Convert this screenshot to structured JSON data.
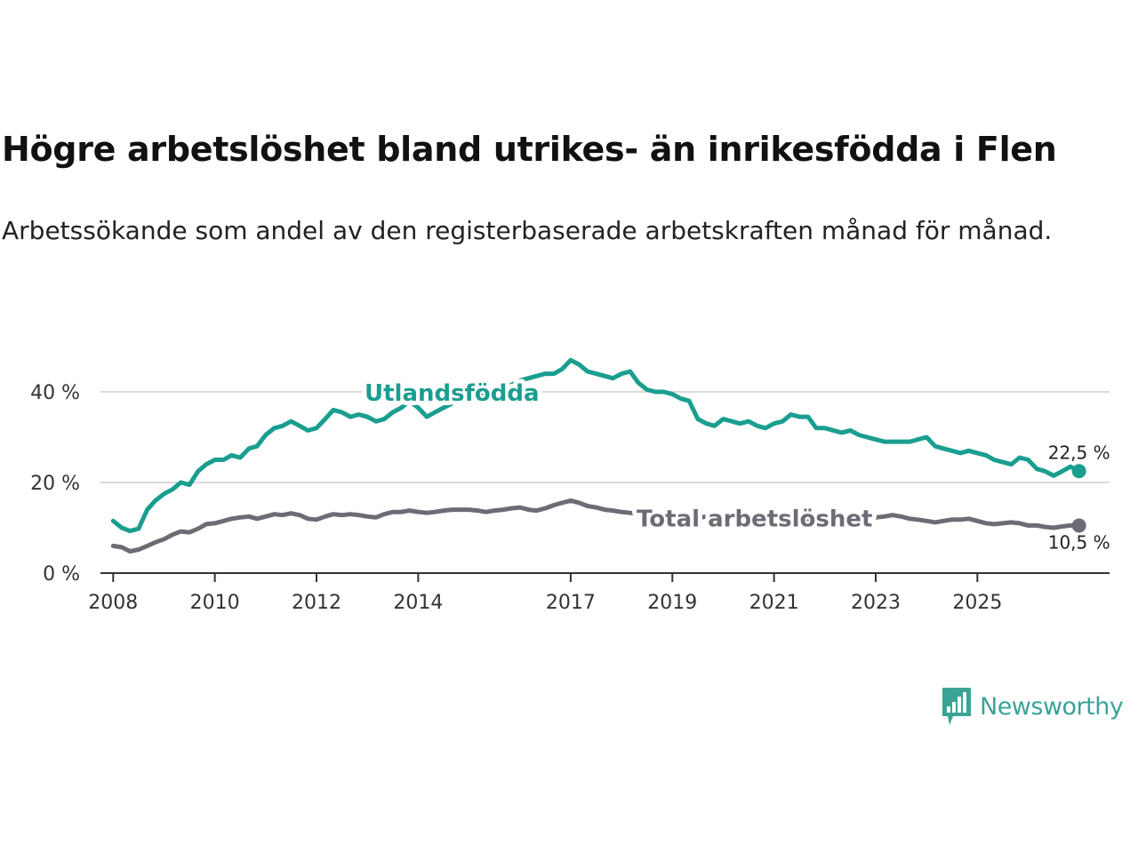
{
  "header": {
    "title": "Högre arbetslöshet bland utrikes- än inrikesfödda i Flen",
    "subtitle": "Arbetssökande som andel av den registerbaserade arbetskraften månad för månad."
  },
  "brand": {
    "name": "Newsworthy",
    "icon": "newsworthy-logo-icon",
    "color": "#3aa396"
  },
  "chart_data": {
    "type": "line",
    "title": "Högre arbetslöshet bland utrikes- än inrikesfödda i Flen",
    "subtitle": "Arbetssökande som andel av den registerbaserade arbetskraften månad för månad.",
    "xlabel": "",
    "ylabel": "",
    "xlim": [
      2007.75,
      2027.6
    ],
    "ylim": [
      0,
      42
    ],
    "grid": true,
    "x_ticks": [
      2008,
      2010,
      2012,
      2014,
      2017,
      2019,
      2021,
      2023,
      2025
    ],
    "x_tick_labels": [
      "2008",
      "2010",
      "2012",
      "2014",
      "2017",
      "2019",
      "2021",
      "2023",
      "2025"
    ],
    "y_ticks": [
      0,
      20,
      40
    ],
    "y_tick_labels": [
      "0 %",
      "20 %",
      "40 %"
    ],
    "series": [
      {
        "name": "Utlandsfödda",
        "color": "#1a9e8f",
        "end_label": "22,5 %",
        "points": [
          [
            2008.0,
            11.5
          ],
          [
            2008.17,
            10.0
          ],
          [
            2008.33,
            9.3
          ],
          [
            2008.5,
            9.8
          ],
          [
            2008.67,
            14.0
          ],
          [
            2008.83,
            16.0
          ],
          [
            2009.0,
            17.5
          ],
          [
            2009.17,
            18.5
          ],
          [
            2009.33,
            20.0
          ],
          [
            2009.5,
            19.5
          ],
          [
            2009.67,
            22.5
          ],
          [
            2009.83,
            24.0
          ],
          [
            2010.0,
            25.0
          ],
          [
            2010.17,
            25.0
          ],
          [
            2010.33,
            26.0
          ],
          [
            2010.5,
            25.5
          ],
          [
            2010.67,
            27.5
          ],
          [
            2010.83,
            28.0
          ],
          [
            2011.0,
            30.5
          ],
          [
            2011.17,
            32.0
          ],
          [
            2011.33,
            32.5
          ],
          [
            2011.5,
            33.5
          ],
          [
            2011.67,
            32.5
          ],
          [
            2011.83,
            31.5
          ],
          [
            2012.0,
            32.0
          ],
          [
            2012.17,
            34.0
          ],
          [
            2012.33,
            36.0
          ],
          [
            2012.5,
            35.5
          ],
          [
            2012.67,
            34.5
          ],
          [
            2012.83,
            35.0
          ],
          [
            2013.0,
            34.5
          ],
          [
            2013.17,
            33.5
          ],
          [
            2013.33,
            34.0
          ],
          [
            2013.5,
            35.5
          ],
          [
            2013.67,
            36.5
          ],
          [
            2013.83,
            38.0
          ],
          [
            2014.0,
            36.5
          ],
          [
            2014.17,
            34.5
          ],
          [
            2014.33,
            35.5
          ],
          [
            2014.5,
            36.5
          ],
          [
            2014.67,
            37.5
          ],
          [
            2014.83,
            38.0
          ],
          [
            2015.0,
            38.5
          ],
          [
            2015.17,
            39.5
          ],
          [
            2015.33,
            40.0
          ],
          [
            2015.5,
            40.5
          ],
          [
            2015.67,
            41.0
          ],
          [
            2015.83,
            41.5
          ],
          [
            2016.0,
            42.5
          ],
          [
            2016.17,
            43.0
          ],
          [
            2016.33,
            43.5
          ],
          [
            2016.5,
            44.0
          ],
          [
            2016.67,
            44.0
          ],
          [
            2016.83,
            45.0
          ],
          [
            2017.0,
            47.0
          ],
          [
            2017.17,
            46.0
          ],
          [
            2017.33,
            44.5
          ],
          [
            2017.5,
            44.0
          ],
          [
            2017.67,
            43.5
          ],
          [
            2017.83,
            43.0
          ],
          [
            2018.0,
            44.0
          ],
          [
            2018.17,
            44.5
          ],
          [
            2018.33,
            42.0
          ],
          [
            2018.5,
            40.5
          ],
          [
            2018.67,
            40.0
          ],
          [
            2018.83,
            40.0
          ],
          [
            2019.0,
            39.5
          ],
          [
            2019.17,
            38.5
          ],
          [
            2019.33,
            38.0
          ],
          [
            2019.5,
            34.0
          ],
          [
            2019.67,
            33.0
          ],
          [
            2019.83,
            32.5
          ],
          [
            2020.0,
            34.0
          ],
          [
            2020.17,
            33.5
          ],
          [
            2020.33,
            33.0
          ],
          [
            2020.5,
            33.5
          ],
          [
            2020.67,
            32.5
          ],
          [
            2020.83,
            32.0
          ],
          [
            2021.0,
            33.0
          ],
          [
            2021.17,
            33.5
          ],
          [
            2021.33,
            35.0
          ],
          [
            2021.5,
            34.5
          ],
          [
            2021.67,
            34.5
          ],
          [
            2021.83,
            32.0
          ],
          [
            2022.0,
            32.0
          ],
          [
            2022.17,
            31.5
          ],
          [
            2022.33,
            31.0
          ],
          [
            2022.5,
            31.5
          ],
          [
            2022.67,
            30.5
          ],
          [
            2022.83,
            30.0
          ],
          [
            2023.0,
            29.5
          ],
          [
            2023.17,
            29.0
          ],
          [
            2023.33,
            29.0
          ],
          [
            2023.5,
            29.0
          ],
          [
            2023.67,
            29.0
          ],
          [
            2023.83,
            29.5
          ],
          [
            2024.0,
            30.0
          ],
          [
            2024.17,
            28.0
          ],
          [
            2024.33,
            27.5
          ],
          [
            2024.5,
            27.0
          ],
          [
            2024.67,
            26.5
          ],
          [
            2024.83,
            27.0
          ],
          [
            2025.0,
            26.5
          ],
          [
            2025.17,
            26.0
          ],
          [
            2025.33,
            25.0
          ],
          [
            2025.5,
            24.5
          ],
          [
            2025.67,
            24.0
          ],
          [
            2025.83,
            25.5
          ],
          [
            2026.0,
            25.0
          ],
          [
            2026.17,
            23.0
          ],
          [
            2026.33,
            22.5
          ],
          [
            2026.5,
            21.5
          ],
          [
            2026.67,
            22.5
          ],
          [
            2026.83,
            23.5
          ],
          [
            2027.0,
            22.5
          ]
        ]
      },
      {
        "name": "Total arbetslöshet",
        "color": "#6d6b74",
        "end_label": "10,5 %",
        "points": [
          [
            2008.0,
            6.0
          ],
          [
            2008.17,
            5.7
          ],
          [
            2008.33,
            4.8
          ],
          [
            2008.5,
            5.2
          ],
          [
            2008.67,
            6.0
          ],
          [
            2008.83,
            6.8
          ],
          [
            2009.0,
            7.5
          ],
          [
            2009.17,
            8.5
          ],
          [
            2009.33,
            9.2
          ],
          [
            2009.5,
            9.0
          ],
          [
            2009.67,
            9.8
          ],
          [
            2009.83,
            10.8
          ],
          [
            2010.0,
            11.0
          ],
          [
            2010.17,
            11.5
          ],
          [
            2010.33,
            12.0
          ],
          [
            2010.5,
            12.3
          ],
          [
            2010.67,
            12.5
          ],
          [
            2010.83,
            12.0
          ],
          [
            2011.0,
            12.5
          ],
          [
            2011.17,
            13.0
          ],
          [
            2011.33,
            12.8
          ],
          [
            2011.5,
            13.2
          ],
          [
            2011.67,
            12.8
          ],
          [
            2011.83,
            12.0
          ],
          [
            2012.0,
            11.8
          ],
          [
            2012.17,
            12.5
          ],
          [
            2012.33,
            13.0
          ],
          [
            2012.5,
            12.8
          ],
          [
            2012.67,
            13.0
          ],
          [
            2012.83,
            12.8
          ],
          [
            2013.0,
            12.5
          ],
          [
            2013.17,
            12.3
          ],
          [
            2013.33,
            13.0
          ],
          [
            2013.5,
            13.5
          ],
          [
            2013.67,
            13.5
          ],
          [
            2013.83,
            13.8
          ],
          [
            2014.0,
            13.5
          ],
          [
            2014.17,
            13.3
          ],
          [
            2014.33,
            13.5
          ],
          [
            2014.5,
            13.8
          ],
          [
            2014.67,
            14.0
          ],
          [
            2014.83,
            14.0
          ],
          [
            2015.0,
            14.0
          ],
          [
            2015.17,
            13.8
          ],
          [
            2015.33,
            13.5
          ],
          [
            2015.5,
            13.8
          ],
          [
            2015.67,
            14.0
          ],
          [
            2015.83,
            14.3
          ],
          [
            2016.0,
            14.5
          ],
          [
            2016.17,
            14.0
          ],
          [
            2016.33,
            13.8
          ],
          [
            2016.5,
            14.3
          ],
          [
            2016.67,
            15.0
          ],
          [
            2016.83,
            15.5
          ],
          [
            2017.0,
            16.0
          ],
          [
            2017.17,
            15.5
          ],
          [
            2017.33,
            14.8
          ],
          [
            2017.5,
            14.5
          ],
          [
            2017.67,
            14.0
          ],
          [
            2017.83,
            13.8
          ],
          [
            2018.0,
            13.5
          ],
          [
            2018.17,
            13.3
          ],
          [
            2018.33,
            13.0
          ],
          [
            2018.5,
            13.2
          ],
          [
            2018.67,
            13.0
          ],
          [
            2018.83,
            12.8
          ],
          [
            2019.0,
            12.5
          ],
          [
            2019.17,
            12.3
          ],
          [
            2019.33,
            12.0
          ],
          [
            2019.5,
            12.2
          ],
          [
            2019.67,
            12.5
          ],
          [
            2019.83,
            12.3
          ],
          [
            2020.0,
            12.5
          ],
          [
            2020.17,
            12.8
          ],
          [
            2020.33,
            12.5
          ],
          [
            2020.5,
            12.3
          ],
          [
            2020.67,
            12.5
          ],
          [
            2020.83,
            12.8
          ],
          [
            2021.0,
            12.5
          ],
          [
            2021.17,
            12.3
          ],
          [
            2021.33,
            12.5
          ],
          [
            2021.5,
            12.3
          ],
          [
            2021.67,
            12.0
          ],
          [
            2021.83,
            12.0
          ],
          [
            2022.0,
            12.2
          ],
          [
            2022.17,
            12.0
          ],
          [
            2022.33,
            11.8
          ],
          [
            2022.5,
            12.0
          ],
          [
            2022.67,
            11.8
          ],
          [
            2022.83,
            12.0
          ],
          [
            2023.0,
            12.3
          ],
          [
            2023.17,
            12.5
          ],
          [
            2023.33,
            12.8
          ],
          [
            2023.5,
            12.5
          ],
          [
            2023.67,
            12.0
          ],
          [
            2023.83,
            11.8
          ],
          [
            2024.0,
            11.5
          ],
          [
            2024.17,
            11.2
          ],
          [
            2024.33,
            11.5
          ],
          [
            2024.5,
            11.8
          ],
          [
            2024.67,
            11.8
          ],
          [
            2024.83,
            12.0
          ],
          [
            2025.0,
            11.5
          ],
          [
            2025.17,
            11.0
          ],
          [
            2025.33,
            10.8
          ],
          [
            2025.5,
            11.0
          ],
          [
            2025.67,
            11.2
          ],
          [
            2025.83,
            11.0
          ],
          [
            2026.0,
            10.5
          ],
          [
            2026.17,
            10.5
          ],
          [
            2026.33,
            10.2
          ],
          [
            2026.5,
            10.0
          ],
          [
            2026.67,
            10.3
          ],
          [
            2026.83,
            10.5
          ],
          [
            2027.0,
            10.5
          ]
        ]
      }
    ],
    "annotations": [
      {
        "text": "Utlandsfödda",
        "series": "Utlandsfödda",
        "at_x": 2013.75
      },
      {
        "text": "Total arbetslöshet",
        "series": "Total arbetslöshet",
        "at_x": 2019.25
      }
    ]
  }
}
